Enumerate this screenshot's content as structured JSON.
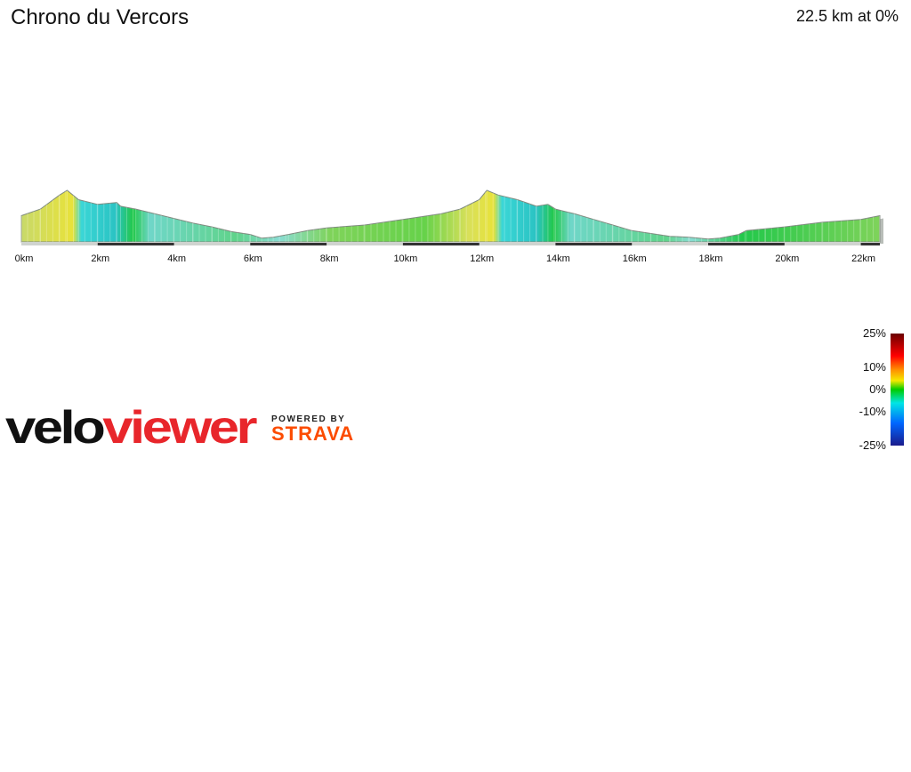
{
  "header": {
    "title": "Chrono du Vercors",
    "summary": "22.5 km at 0%"
  },
  "chart_data": {
    "type": "area",
    "title": "Chrono du Vercors",
    "xlabel": "",
    "ylabel": "",
    "x_unit": "km",
    "xlim": [
      0,
      22.5
    ],
    "x_ticks": [
      "0km",
      "2km",
      "4km",
      "6km",
      "8km",
      "10km",
      "12km",
      "14km",
      "16km",
      "18km",
      "20km",
      "22km"
    ],
    "series": [
      {
        "distance_km": [
          0,
          0.5,
          1.0,
          1.2,
          1.5,
          2.0,
          2.5,
          2.6,
          3.0,
          3.5,
          4.0,
          4.5,
          5.0,
          5.5,
          6.0,
          6.3,
          6.6,
          7.0,
          7.5,
          8.0,
          9.0,
          10.0,
          11.0,
          11.5,
          12.0,
          12.2,
          12.5,
          13.0,
          13.5,
          13.8,
          14.0,
          14.5,
          15.0,
          15.5,
          16.0,
          16.5,
          17.0,
          17.5,
          18.0,
          18.3,
          18.8,
          19.0,
          19.5,
          20.0,
          21.0,
          22.0,
          22.5
        ],
        "relative_elevation": [
          0.28,
          0.35,
          0.5,
          0.55,
          0.45,
          0.4,
          0.42,
          0.38,
          0.35,
          0.3,
          0.25,
          0.2,
          0.16,
          0.11,
          0.08,
          0.04,
          0.05,
          0.08,
          0.12,
          0.15,
          0.18,
          0.24,
          0.3,
          0.35,
          0.45,
          0.55,
          0.5,
          0.45,
          0.38,
          0.4,
          0.35,
          0.3,
          0.24,
          0.18,
          0.12,
          0.09,
          0.06,
          0.05,
          0.03,
          0.04,
          0.08,
          0.12,
          0.14,
          0.16,
          0.21,
          0.24,
          0.28
        ]
      }
    ],
    "gradient_legend": {
      "labels": [
        "25%",
        "10%",
        "0%",
        "-10%",
        "-25%"
      ],
      "values": [
        25,
        10,
        0,
        -10,
        -25
      ],
      "colors": [
        "#6b0000",
        "#ff0000",
        "#ff8c00",
        "#f5e800",
        "#00cc00",
        "#00e5e5",
        "#0066ff",
        "#1a1a8c"
      ]
    }
  },
  "branding": {
    "velo": "velo",
    "viewer": "viewer",
    "powered_by": "POWERED BY",
    "strava": "STRAVA",
    "colors": {
      "velo": "#111111",
      "viewer": "#e8262b",
      "strava": "#fc4c02"
    }
  }
}
